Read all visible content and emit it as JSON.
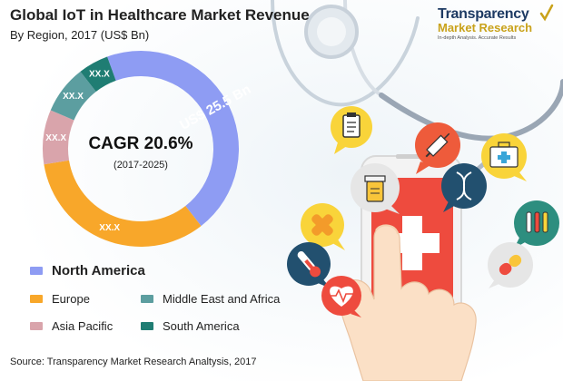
{
  "title": "Global IoT in Healthcare Market Revenue",
  "subtitle": "By Region, 2017 (US$ Bn)",
  "brand": {
    "name": "Transparency",
    "subname": "Market Research",
    "tagline": "In-depth Analysis. Accurate Results"
  },
  "source": "Source: Transparency Market Research Analtysis, 2017",
  "colors": {
    "north_america": "#8e9cf3",
    "europe": "#f8a72a",
    "asia_pacific": "#d9a4ab",
    "middle_east_africa": "#5c9ea0",
    "south_america": "#1f7d73"
  },
  "chart_data": {
    "type": "pie",
    "title": "Global IoT in Healthcare Market Revenue",
    "subtitle": "By Region, 2017 (US$ Bn)",
    "center_label": "CAGR 20.6%",
    "center_sublabel": "(2017-2025)",
    "slices": [
      {
        "name": "North America",
        "share": 0.45,
        "label": "US$ 25.5 Bn",
        "color": "#8e9cf3"
      },
      {
        "name": "Europe",
        "share": 0.33,
        "label": "XX.X",
        "color": "#f8a72a"
      },
      {
        "name": "Asia Pacific",
        "share": 0.09,
        "label": "XX.X",
        "color": "#d9a4ab"
      },
      {
        "name": "Middle East and Africa",
        "share": 0.08,
        "label": "XX.X",
        "color": "#5c9ea0"
      },
      {
        "name": "South America",
        "share": 0.05,
        "label": "XX.X",
        "color": "#1f7d73"
      }
    ],
    "legend": [
      "North America",
      "Europe",
      "Middle East and Africa",
      "Asia Pacific",
      "South America"
    ],
    "legend_position": "bottom"
  },
  "icons": [
    "stethoscope-icon",
    "smartphone-icon",
    "hand-pointer-icon",
    "clipboard-icon",
    "injection-icon",
    "first-aid-kit-icon",
    "dna-icon",
    "pill-bottle-icon",
    "test-tubes-icon",
    "bandage-icon",
    "capsule-icon",
    "thermometer-icon",
    "heartbeat-icon"
  ]
}
